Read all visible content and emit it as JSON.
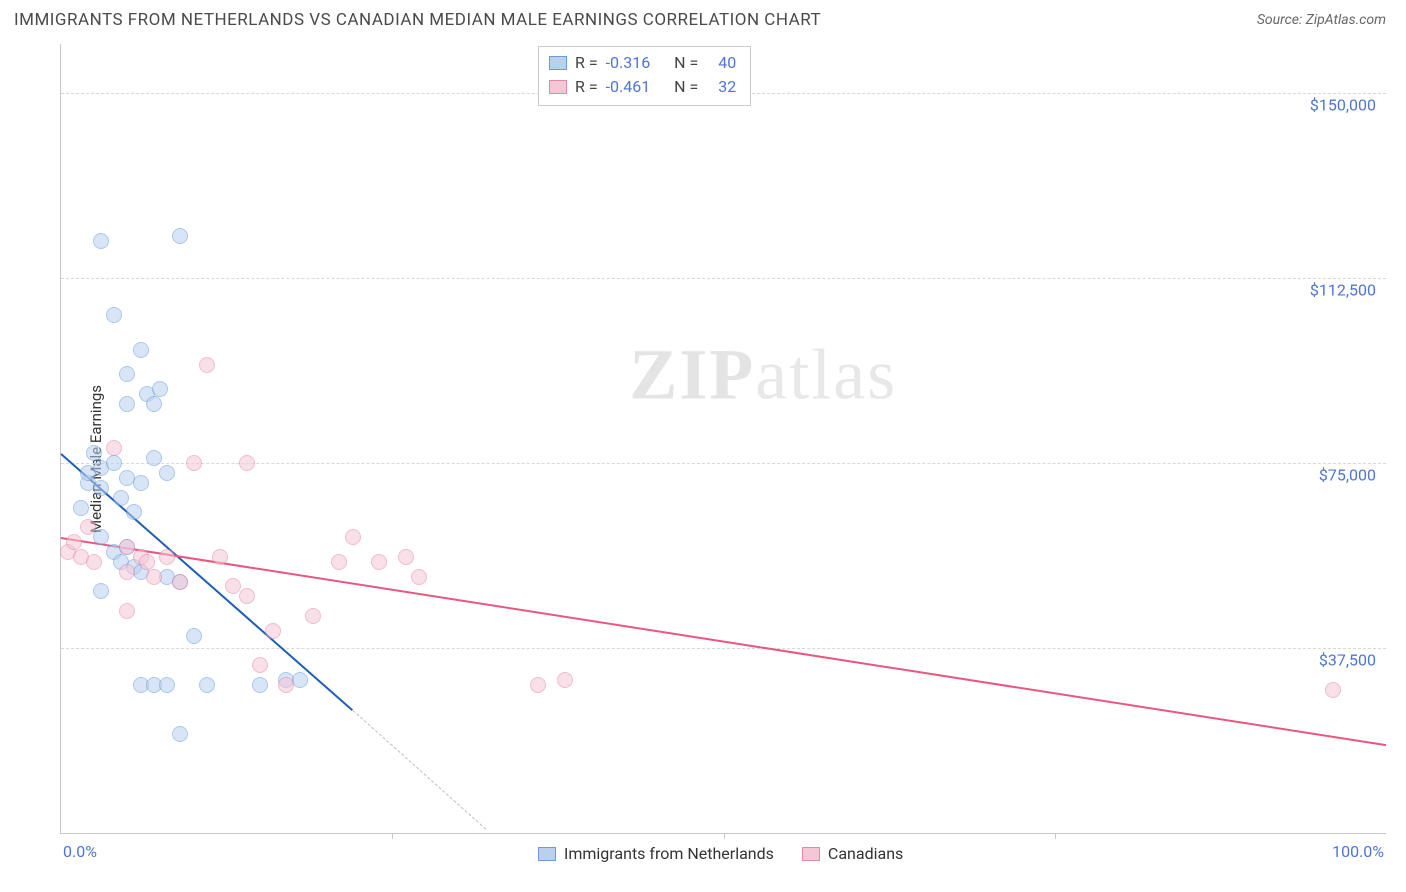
{
  "title": "IMMIGRANTS FROM NETHERLANDS VS CANADIAN MEDIAN MALE EARNINGS CORRELATION CHART",
  "source_label": "Source:",
  "source_value": "ZipAtlas.com",
  "watermark_bold": "ZIP",
  "watermark_rest": "atlas",
  "ylabel": "Median Male Earnings",
  "chart": {
    "type": "scatter",
    "background_color": "#ffffff",
    "grid_color": "#d8d8d8",
    "axis_color": "#c7c7c7",
    "label_color": "#4f74d6",
    "xlim": [
      0,
      100
    ],
    "ylim": [
      0,
      160000
    ],
    "x_tick_left": "0.0%",
    "x_tick_right": "100.0%",
    "x_minor_ticks_pct": [
      25,
      50,
      75
    ],
    "y_gridlines": [
      37500,
      75000,
      112500,
      150000
    ],
    "y_tick_labels": [
      "$37,500",
      "$75,000",
      "$112,500",
      "$150,000"
    ],
    "marker_radius": 8,
    "marker_border_width": 1.2,
    "series": [
      {
        "name": "Immigrants from Netherlands",
        "fill": "#b9d0ef",
        "stroke": "#6b9bd8",
        "fill_opacity": 0.55,
        "r_value": "-0.316",
        "n_value": "40",
        "trend": {
          "x1": 0,
          "y1": 77000,
          "x2": 22,
          "y2": 25000,
          "color": "#1e5fb3",
          "width": 2.2
        },
        "trend_extrap": {
          "x1": 22,
          "y1": 25000,
          "x2": 32,
          "y2": 1000
        },
        "points": [
          [
            3,
            120000
          ],
          [
            9,
            121000
          ],
          [
            1.5,
            66000
          ],
          [
            2,
            71000
          ],
          [
            2,
            73000
          ],
          [
            3,
            74000
          ],
          [
            4,
            105000
          ],
          [
            5,
            93000
          ],
          [
            5,
            87000
          ],
          [
            6,
            98000
          ],
          [
            6.5,
            89000
          ],
          [
            7,
            87000
          ],
          [
            7.5,
            90000
          ],
          [
            2.5,
            77000
          ],
          [
            3,
            70000
          ],
          [
            4,
            75000
          ],
          [
            4.5,
            68000
          ],
          [
            5,
            72000
          ],
          [
            5.5,
            65000
          ],
          [
            6,
            71000
          ],
          [
            7,
            76000
          ],
          [
            8,
            73000
          ],
          [
            3,
            60000
          ],
          [
            4,
            57000
          ],
          [
            4.5,
            55000
          ],
          [
            5,
            58000
          ],
          [
            5.5,
            54000
          ],
          [
            6,
            53000
          ],
          [
            8,
            52000
          ],
          [
            9,
            51000
          ],
          [
            10,
            40000
          ],
          [
            3,
            49000
          ],
          [
            6,
            30000
          ],
          [
            7,
            30000
          ],
          [
            8,
            30000
          ],
          [
            11,
            30000
          ],
          [
            9,
            20000
          ],
          [
            15,
            30000
          ],
          [
            17,
            31000
          ],
          [
            18,
            31000
          ]
        ]
      },
      {
        "name": "Canadians",
        "fill": "#f5c6d5",
        "stroke": "#e08aa7",
        "fill_opacity": 0.55,
        "r_value": "-0.461",
        "n_value": "32",
        "trend": {
          "x1": 0,
          "y1": 60000,
          "x2": 100,
          "y2": 18000,
          "color": "#e8577f",
          "width": 2.2
        },
        "points": [
          [
            0.5,
            57000
          ],
          [
            1,
            59000
          ],
          [
            1.5,
            56000
          ],
          [
            2,
            62000
          ],
          [
            2.5,
            55000
          ],
          [
            4,
            78000
          ],
          [
            5,
            58000
          ],
          [
            5,
            53000
          ],
          [
            6,
            56000
          ],
          [
            6.5,
            55000
          ],
          [
            7,
            52000
          ],
          [
            8,
            56000
          ],
          [
            9,
            51000
          ],
          [
            10,
            75000
          ],
          [
            11,
            95000
          ],
          [
            12,
            56000
          ],
          [
            13,
            50000
          ],
          [
            14,
            75000
          ],
          [
            14,
            48000
          ],
          [
            15,
            34000
          ],
          [
            16,
            41000
          ],
          [
            17,
            30000
          ],
          [
            19,
            44000
          ],
          [
            21,
            55000
          ],
          [
            22,
            60000
          ],
          [
            24,
            55000
          ],
          [
            26,
            56000
          ],
          [
            27,
            52000
          ],
          [
            36,
            30000
          ],
          [
            38,
            31000
          ],
          [
            96,
            29000
          ],
          [
            5,
            45000
          ]
        ]
      }
    ],
    "legend_top_label_R": "R =",
    "legend_top_label_N": "N ="
  }
}
